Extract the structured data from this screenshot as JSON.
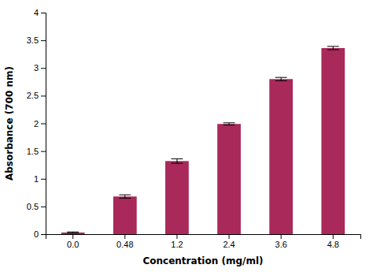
{
  "chart_data": {
    "type": "bar",
    "categories": [
      "0.0",
      "0.48",
      "1.2",
      "2.4",
      "3.6",
      "4.8"
    ],
    "values": [
      0.03,
      0.68,
      1.32,
      1.99,
      2.8,
      3.36
    ],
    "errors": [
      0.01,
      0.03,
      0.04,
      0.02,
      0.03,
      0.03
    ],
    "color": "#a8295a",
    "xlabel": "Concentration (mg/ml)",
    "ylabel": "Absorbance (700 nm)",
    "ylim": [
      0,
      4.0
    ],
    "yticks": [
      0,
      0.5,
      1,
      1.5,
      2,
      2.5,
      3,
      3.5,
      4
    ],
    "grid": false
  }
}
